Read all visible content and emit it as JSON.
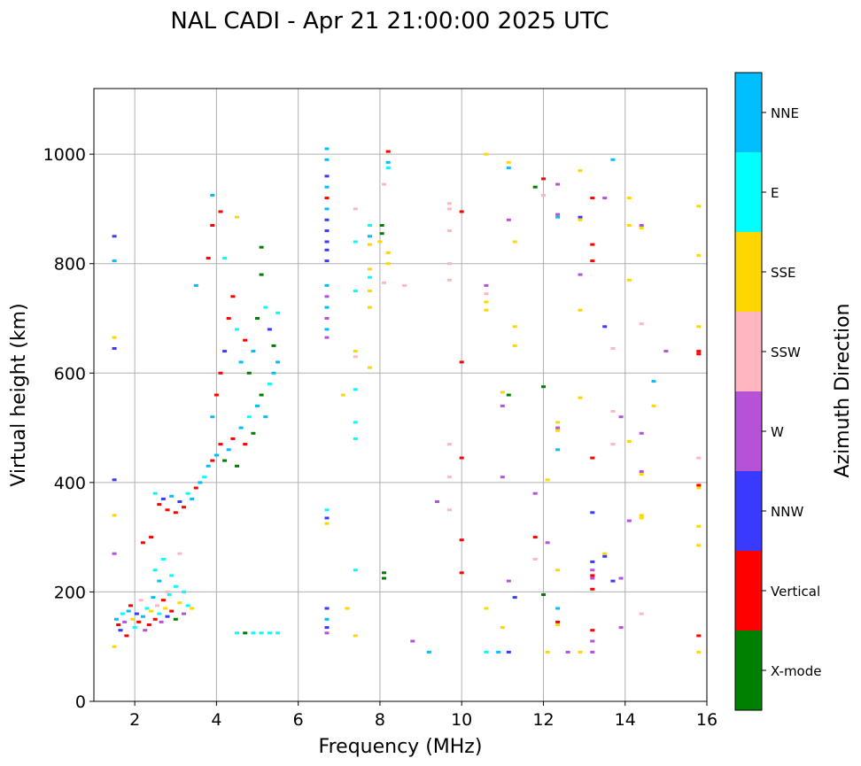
{
  "chart_data": {
    "type": "scatter",
    "title": "NAL CADI - Apr 21 21:00:00 2025 UTC",
    "xlabel": "Frequency (MHz)",
    "ylabel": "Virtual height (km)",
    "xlim": [
      1.0,
      16.0
    ],
    "ylim": [
      0,
      1120
    ],
    "xticks": [
      "2",
      "4",
      "6",
      "8",
      "10",
      "12",
      "14",
      "16"
    ],
    "yticks": [
      "0",
      "200",
      "400",
      "600",
      "800",
      "1000"
    ],
    "grid": true,
    "legend": "colorbar-right",
    "colorbar": {
      "label": "Azimuth Direction",
      "categories": [
        {
          "name": "X-mode",
          "color": "#008000"
        },
        {
          "name": "Vertical",
          "color": "#ff0000"
        },
        {
          "name": "NNW",
          "color": "#3a3aff"
        },
        {
          "name": "W",
          "color": "#b552d6"
        },
        {
          "name": "SSW",
          "color": "#ffb6c1"
        },
        {
          "name": "SSE",
          "color": "#ffd700"
        },
        {
          "name": "E",
          "color": "#00ffff"
        },
        {
          "name": "NNE",
          "color": "#00bfff"
        }
      ]
    },
    "points": [
      [
        1.5,
        850,
        "NNW"
      ],
      [
        1.5,
        805,
        "NNE"
      ],
      [
        1.5,
        665,
        "SSE"
      ],
      [
        1.5,
        645,
        "NNW"
      ],
      [
        1.5,
        405,
        "NNW"
      ],
      [
        1.5,
        340,
        "SSE"
      ],
      [
        1.5,
        270,
        "W"
      ],
      [
        1.5,
        100,
        "SSE"
      ],
      [
        1.55,
        150,
        "NNE"
      ],
      [
        1.6,
        140,
        "Vertical"
      ],
      [
        1.65,
        130,
        "NNW"
      ],
      [
        1.7,
        160,
        "E"
      ],
      [
        1.75,
        145,
        "W"
      ],
      [
        1.8,
        120,
        "Vertical"
      ],
      [
        1.85,
        165,
        "NNE"
      ],
      [
        1.9,
        175,
        "Vertical"
      ],
      [
        1.95,
        150,
        "SSE"
      ],
      [
        2.0,
        135,
        "E"
      ],
      [
        2.05,
        160,
        "NNW"
      ],
      [
        2.1,
        145,
        "Vertical"
      ],
      [
        2.15,
        185,
        "SSW"
      ],
      [
        2.2,
        155,
        "NNE"
      ],
      [
        2.25,
        130,
        "W"
      ],
      [
        2.3,
        170,
        "E"
      ],
      [
        2.35,
        140,
        "Vertical"
      ],
      [
        2.4,
        165,
        "SSE"
      ],
      [
        2.45,
        190,
        "NNE"
      ],
      [
        2.5,
        150,
        "Vertical"
      ],
      [
        2.55,
        175,
        "SSW"
      ],
      [
        2.6,
        160,
        "E"
      ],
      [
        2.65,
        145,
        "W"
      ],
      [
        2.7,
        185,
        "Vertical"
      ],
      [
        2.75,
        170,
        "SSE"
      ],
      [
        2.8,
        155,
        "NNW"
      ],
      [
        2.85,
        195,
        "E"
      ],
      [
        2.9,
        165,
        "Vertical"
      ],
      [
        3.0,
        150,
        "X-mode"
      ],
      [
        3.1,
        180,
        "SSE"
      ],
      [
        3.2,
        160,
        "W"
      ],
      [
        3.3,
        175,
        "E"
      ],
      [
        3.4,
        170,
        "SSE"
      ],
      [
        2.2,
        290,
        "Vertical"
      ],
      [
        2.4,
        300,
        "Vertical"
      ],
      [
        2.5,
        240,
        "E"
      ],
      [
        2.6,
        220,
        "NNE"
      ],
      [
        2.7,
        260,
        "E"
      ],
      [
        2.8,
        200,
        "SSW"
      ],
      [
        2.9,
        230,
        "E"
      ],
      [
        3.0,
        210,
        "E"
      ],
      [
        3.1,
        270,
        "SSW"
      ],
      [
        3.2,
        200,
        "E"
      ],
      [
        2.5,
        380,
        "E"
      ],
      [
        2.6,
        360,
        "Vertical"
      ],
      [
        2.7,
        370,
        "NNW"
      ],
      [
        2.8,
        350,
        "Vertical"
      ],
      [
        2.9,
        375,
        "NNE"
      ],
      [
        3.0,
        345,
        "Vertical"
      ],
      [
        3.1,
        365,
        "NNW"
      ],
      [
        3.2,
        355,
        "Vertical"
      ],
      [
        3.3,
        380,
        "E"
      ],
      [
        3.4,
        370,
        "NNE"
      ],
      [
        3.5,
        390,
        "Vertical"
      ],
      [
        3.6,
        400,
        "NNE"
      ],
      [
        3.7,
        410,
        "E"
      ],
      [
        3.8,
        430,
        "NNE"
      ],
      [
        3.9,
        440,
        "Vertical"
      ],
      [
        4.0,
        450,
        "NNE"
      ],
      [
        4.1,
        470,
        "Vertical"
      ],
      [
        4.2,
        440,
        "X-mode"
      ],
      [
        4.3,
        460,
        "NNE"
      ],
      [
        4.4,
        480,
        "Vertical"
      ],
      [
        4.5,
        430,
        "X-mode"
      ],
      [
        4.6,
        500,
        "NNE"
      ],
      [
        4.7,
        470,
        "Vertical"
      ],
      [
        4.8,
        520,
        "E"
      ],
      [
        4.9,
        490,
        "X-mode"
      ],
      [
        5.0,
        540,
        "NNE"
      ],
      [
        5.1,
        560,
        "X-mode"
      ],
      [
        5.2,
        520,
        "NNE"
      ],
      [
        5.3,
        580,
        "E"
      ],
      [
        5.4,
        600,
        "NNE"
      ],
      [
        5.5,
        620,
        "NNE"
      ],
      [
        3.9,
        520,
        "NNE"
      ],
      [
        4.0,
        560,
        "Vertical"
      ],
      [
        4.1,
        600,
        "Vertical"
      ],
      [
        4.2,
        640,
        "NNW"
      ],
      [
        4.3,
        700,
        "Vertical"
      ],
      [
        4.4,
        740,
        "Vertical"
      ],
      [
        4.5,
        680,
        "E"
      ],
      [
        4.6,
        620,
        "NNE"
      ],
      [
        4.7,
        660,
        "Vertical"
      ],
      [
        4.8,
        600,
        "X-mode"
      ],
      [
        4.9,
        640,
        "NNE"
      ],
      [
        5.0,
        700,
        "X-mode"
      ],
      [
        5.1,
        780,
        "X-mode"
      ],
      [
        5.2,
        720,
        "E"
      ],
      [
        5.3,
        680,
        "NNW"
      ],
      [
        5.4,
        650,
        "X-mode"
      ],
      [
        5.5,
        710,
        "E"
      ],
      [
        3.5,
        760,
        "NNE"
      ],
      [
        3.8,
        810,
        "Vertical"
      ],
      [
        3.9,
        870,
        "Vertical"
      ],
      [
        3.9,
        925,
        "NNE"
      ],
      [
        4.1,
        895,
        "Vertical"
      ],
      [
        4.2,
        810,
        "E"
      ],
      [
        4.5,
        885,
        "SSE"
      ],
      [
        5.1,
        830,
        "X-mode"
      ],
      [
        4.5,
        125,
        "E"
      ],
      [
        4.7,
        125,
        "X-mode"
      ],
      [
        4.9,
        125,
        "E"
      ],
      [
        5.1,
        125,
        "E"
      ],
      [
        5.3,
        125,
        "E"
      ],
      [
        5.5,
        125,
        "E"
      ],
      [
        6.7,
        1010,
        "NNE"
      ],
      [
        6.7,
        990,
        "NNE"
      ],
      [
        6.7,
        960,
        "NNW"
      ],
      [
        6.7,
        940,
        "NNE"
      ],
      [
        6.7,
        920,
        "Vertical"
      ],
      [
        6.7,
        900,
        "NNE"
      ],
      [
        6.7,
        880,
        "NNW"
      ],
      [
        6.7,
        860,
        "NNW"
      ],
      [
        6.7,
        840,
        "NNW"
      ],
      [
        6.7,
        825,
        "NNW"
      ],
      [
        6.7,
        805,
        "NNW"
      ],
      [
        6.7,
        760,
        "NNE"
      ],
      [
        6.7,
        740,
        "W"
      ],
      [
        6.7,
        720,
        "NNE"
      ],
      [
        6.7,
        700,
        "W"
      ],
      [
        6.7,
        680,
        "NNE"
      ],
      [
        6.7,
        665,
        "W"
      ],
      [
        6.7,
        350,
        "E"
      ],
      [
        6.7,
        335,
        "NNW"
      ],
      [
        6.7,
        325,
        "SSE"
      ],
      [
        6.7,
        170,
        "NNW"
      ],
      [
        6.7,
        150,
        "NNE"
      ],
      [
        6.7,
        135,
        "NNW"
      ],
      [
        6.7,
        125,
        "W"
      ],
      [
        7.1,
        560,
        "SSE"
      ],
      [
        7.2,
        170,
        "SSE"
      ],
      [
        7.4,
        900,
        "SSW"
      ],
      [
        7.4,
        840,
        "E"
      ],
      [
        7.4,
        750,
        "E"
      ],
      [
        7.4,
        640,
        "SSE"
      ],
      [
        7.4,
        630,
        "SSW"
      ],
      [
        7.4,
        570,
        "E"
      ],
      [
        7.4,
        510,
        "E"
      ],
      [
        7.4,
        480,
        "E"
      ],
      [
        7.4,
        240,
        "E"
      ],
      [
        7.4,
        120,
        "SSE"
      ],
      [
        7.75,
        870,
        "E"
      ],
      [
        7.75,
        850,
        "NNE"
      ],
      [
        7.75,
        835,
        "SSE"
      ],
      [
        7.75,
        790,
        "SSE"
      ],
      [
        7.75,
        775,
        "E"
      ],
      [
        7.75,
        750,
        "SSE"
      ],
      [
        7.75,
        720,
        "SSE"
      ],
      [
        7.75,
        610,
        "SSE"
      ],
      [
        8.0,
        840,
        "SSE"
      ],
      [
        8.05,
        870,
        "X-mode"
      ],
      [
        8.05,
        855,
        "X-mode"
      ],
      [
        8.1,
        945,
        "SSW"
      ],
      [
        8.1,
        765,
        "SSW"
      ],
      [
        8.1,
        235,
        "X-mode"
      ],
      [
        8.1,
        225,
        "X-mode"
      ],
      [
        8.2,
        1005,
        "Vertical"
      ],
      [
        8.2,
        985,
        "NNE"
      ],
      [
        8.2,
        975,
        "E"
      ],
      [
        8.2,
        820,
        "SSE"
      ],
      [
        8.2,
        800,
        "SSE"
      ],
      [
        8.6,
        760,
        "SSW"
      ],
      [
        8.8,
        110,
        "W"
      ],
      [
        9.2,
        90,
        "NNE"
      ],
      [
        9.4,
        365,
        "W"
      ],
      [
        9.7,
        910,
        "SSW"
      ],
      [
        9.7,
        900,
        "SSW"
      ],
      [
        9.7,
        860,
        "SSW"
      ],
      [
        9.7,
        800,
        "SSW"
      ],
      [
        9.7,
        770,
        "SSW"
      ],
      [
        9.7,
        470,
        "SSW"
      ],
      [
        9.7,
        410,
        "SSW"
      ],
      [
        9.7,
        350,
        "SSW"
      ],
      [
        10.0,
        895,
        "Vertical"
      ],
      [
        10.0,
        620,
        "Vertical"
      ],
      [
        10.0,
        445,
        "Vertical"
      ],
      [
        10.0,
        295,
        "Vertical"
      ],
      [
        10.0,
        235,
        "Vertical"
      ],
      [
        10.6,
        1000,
        "SSE"
      ],
      [
        10.6,
        760,
        "W"
      ],
      [
        10.6,
        745,
        "SSW"
      ],
      [
        10.6,
        730,
        "SSE"
      ],
      [
        10.6,
        715,
        "SSE"
      ],
      [
        10.6,
        170,
        "SSE"
      ],
      [
        10.6,
        90,
        "E"
      ],
      [
        10.9,
        90,
        "NNE"
      ],
      [
        11.0,
        565,
        "SSE"
      ],
      [
        11.0,
        540,
        "W"
      ],
      [
        11.0,
        410,
        "W"
      ],
      [
        11.0,
        135,
        "SSE"
      ],
      [
        11.15,
        985,
        "SSE"
      ],
      [
        11.15,
        975,
        "NNE"
      ],
      [
        11.15,
        880,
        "W"
      ],
      [
        11.15,
        560,
        "X-mode"
      ],
      [
        11.15,
        220,
        "W"
      ],
      [
        11.15,
        90,
        "NNW"
      ],
      [
        11.3,
        840,
        "SSE"
      ],
      [
        11.3,
        685,
        "SSE"
      ],
      [
        11.3,
        650,
        "SSE"
      ],
      [
        11.3,
        190,
        "NNW"
      ],
      [
        11.8,
        940,
        "X-mode"
      ],
      [
        11.8,
        380,
        "W"
      ],
      [
        11.8,
        300,
        "Vertical"
      ],
      [
        11.8,
        260,
        "SSW"
      ],
      [
        12.0,
        955,
        "Vertical"
      ],
      [
        12.0,
        925,
        "SSW"
      ],
      [
        12.0,
        575,
        "X-mode"
      ],
      [
        12.0,
        195,
        "X-mode"
      ],
      [
        12.1,
        405,
        "SSE"
      ],
      [
        12.1,
        290,
        "W"
      ],
      [
        12.1,
        90,
        "SSE"
      ],
      [
        12.35,
        945,
        "W"
      ],
      [
        12.35,
        890,
        "W"
      ],
      [
        12.35,
        885,
        "NNE"
      ],
      [
        12.35,
        510,
        "SSE"
      ],
      [
        12.35,
        500,
        "W"
      ],
      [
        12.35,
        495,
        "SSE"
      ],
      [
        12.35,
        460,
        "NNE"
      ],
      [
        12.35,
        240,
        "SSE"
      ],
      [
        12.35,
        170,
        "NNE"
      ],
      [
        12.35,
        145,
        "Vertical"
      ],
      [
        12.35,
        140,
        "SSE"
      ],
      [
        12.6,
        90,
        "W"
      ],
      [
        12.9,
        970,
        "SSE"
      ],
      [
        12.9,
        885,
        "NNW"
      ],
      [
        12.9,
        880,
        "SSE"
      ],
      [
        12.9,
        780,
        "W"
      ],
      [
        12.9,
        715,
        "SSE"
      ],
      [
        12.9,
        555,
        "SSE"
      ],
      [
        12.9,
        90,
        "SSE"
      ],
      [
        13.2,
        920,
        "Vertical"
      ],
      [
        13.2,
        835,
        "Vertical"
      ],
      [
        13.2,
        805,
        "Vertical"
      ],
      [
        13.2,
        445,
        "Vertical"
      ],
      [
        13.2,
        345,
        "NNW"
      ],
      [
        13.2,
        255,
        "NNW"
      ],
      [
        13.2,
        240,
        "W"
      ],
      [
        13.2,
        230,
        "Vertical"
      ],
      [
        13.2,
        225,
        "W"
      ],
      [
        13.2,
        205,
        "Vertical"
      ],
      [
        13.2,
        130,
        "Vertical"
      ],
      [
        13.2,
        110,
        "W"
      ],
      [
        13.2,
        90,
        "W"
      ],
      [
        13.5,
        920,
        "W"
      ],
      [
        13.5,
        685,
        "NNW"
      ],
      [
        13.5,
        270,
        "SSE"
      ],
      [
        13.5,
        265,
        "NNW"
      ],
      [
        13.7,
        990,
        "NNE"
      ],
      [
        13.7,
        645,
        "SSW"
      ],
      [
        13.7,
        530,
        "SSW"
      ],
      [
        13.7,
        470,
        "SSW"
      ],
      [
        13.7,
        220,
        "NNW"
      ],
      [
        13.9,
        520,
        "W"
      ],
      [
        13.9,
        225,
        "W"
      ],
      [
        13.9,
        135,
        "W"
      ],
      [
        14.1,
        920,
        "SSE"
      ],
      [
        14.1,
        870,
        "SSE"
      ],
      [
        14.1,
        770,
        "SSE"
      ],
      [
        14.1,
        475,
        "SSE"
      ],
      [
        14.1,
        330,
        "W"
      ],
      [
        14.4,
        870,
        "W"
      ],
      [
        14.4,
        865,
        "SSE"
      ],
      [
        14.4,
        690,
        "SSW"
      ],
      [
        14.4,
        490,
        "W"
      ],
      [
        14.4,
        420,
        "W"
      ],
      [
        14.4,
        415,
        "SSE"
      ],
      [
        14.4,
        340,
        "SSE"
      ],
      [
        14.4,
        335,
        "SSE"
      ],
      [
        14.4,
        160,
        "SSW"
      ],
      [
        14.7,
        585,
        "NNE"
      ],
      [
        14.7,
        540,
        "SSE"
      ],
      [
        15.0,
        640,
        "W"
      ],
      [
        15.8,
        905,
        "SSE"
      ],
      [
        15.8,
        815,
        "SSE"
      ],
      [
        15.8,
        685,
        "SSE"
      ],
      [
        15.8,
        640,
        "Vertical"
      ],
      [
        15.8,
        635,
        "Vertical"
      ],
      [
        15.8,
        445,
        "SSW"
      ],
      [
        15.8,
        395,
        "Vertical"
      ],
      [
        15.8,
        390,
        "SSE"
      ],
      [
        15.8,
        320,
        "SSE"
      ],
      [
        15.8,
        285,
        "SSE"
      ],
      [
        15.8,
        120,
        "Vertical"
      ],
      [
        15.8,
        90,
        "SSE"
      ]
    ]
  }
}
